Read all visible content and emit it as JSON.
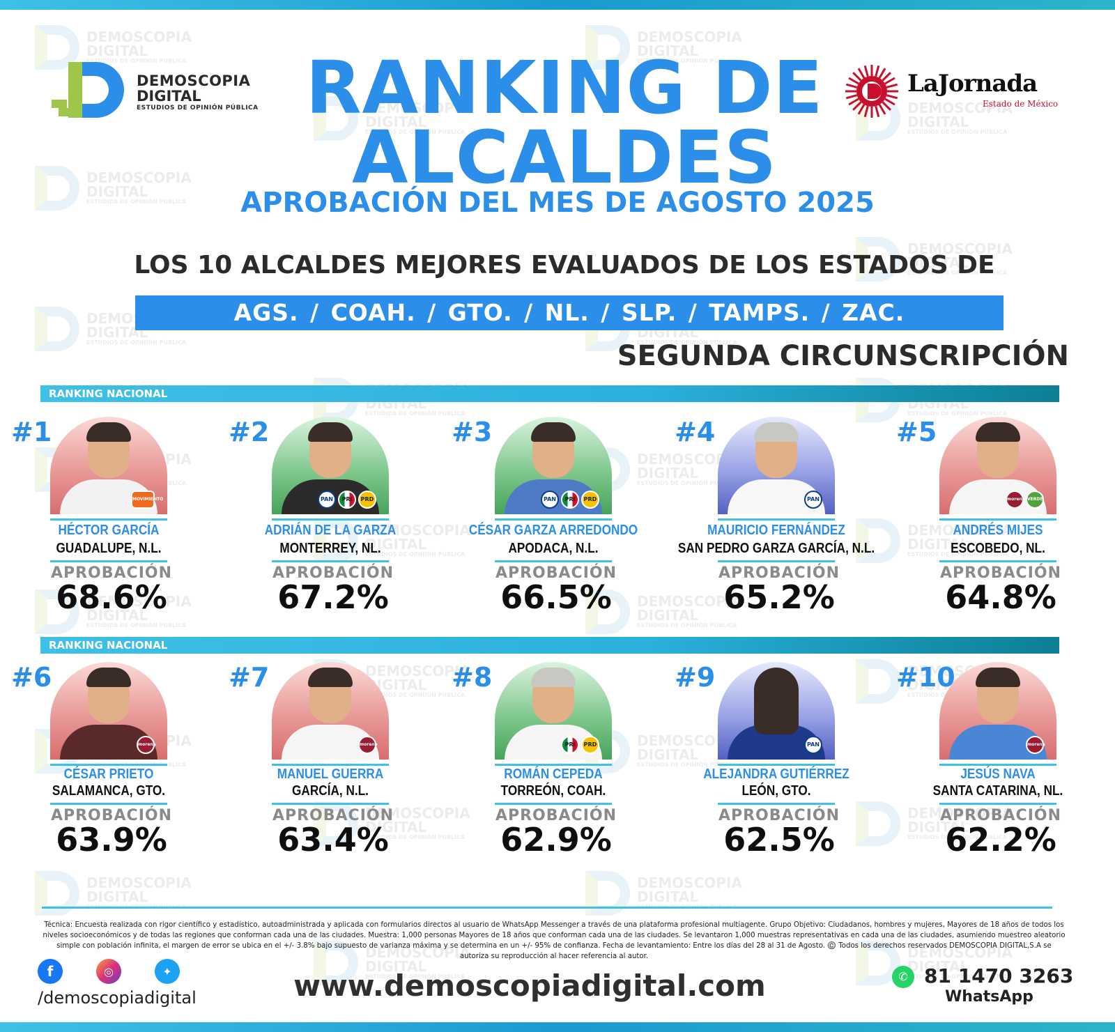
{
  "header": {
    "title_line1": "RANKING DE",
    "title_line2": "ALCALDES",
    "subtitle": "APROBACIÓN DEL MES DE AGOSTO 2025",
    "states_intro": "LOS 10 ALCALDES MEJORES EVALUADOS DE LOS ESTADOS DE",
    "states": "AGS. /  COAH.  /  GTO.  /  NL.  /  SLP.  /  TAMPS.  /  ZAC.",
    "circunscripcion": "SEGUNDA CIRCUNSCRIPCIÓN"
  },
  "brand_left": {
    "line1": "DEMOSCOPIA",
    "line2": "DIGITAL",
    "line3": "ESTUDIOS DE OPINIÓN PÚBLICA",
    "colors": {
      "green": "#9ec64a",
      "blue": "#2b8ee8"
    }
  },
  "brand_right": {
    "name": "LaJornada",
    "sub": "Estado de México",
    "color": "#c8102e"
  },
  "watermark": {
    "line1": "DEMOSCOPIA",
    "line2": "DIGITAL",
    "line3": "ESTUDIOS DE OPINIÓN PÚBLICA"
  },
  "ranking_bars": [
    "RANKING NACIONAL",
    "RANKING NACIONAL"
  ],
  "approval_label": "APROBACIÓN",
  "colors": {
    "accent": "#2b8ee8",
    "cyan": "#3fc0e6",
    "dark": "#0e0e0e"
  },
  "mayors": [
    {
      "rank": "#1",
      "name": "HÉCTOR GARCÍA",
      "city": "GUADALUPE, N.L.",
      "approval": "68.6%",
      "bg": "red",
      "parties": [
        "mc"
      ]
    },
    {
      "rank": "#2",
      "name": "ADRIÁN DE LA GARZA",
      "city": "MONTERREY, NL.",
      "approval": "67.2%",
      "bg": "green",
      "parties": [
        "pan",
        "pri",
        "prd"
      ]
    },
    {
      "rank": "#3",
      "name": "CÉSAR GARZA ARREDONDO",
      "city": "APODACA, N.L.",
      "approval": "66.5%",
      "bg": "green",
      "parties": [
        "pan",
        "pri",
        "prd"
      ]
    },
    {
      "rank": "#4",
      "name": "MAURICIO FERNÁNDEZ",
      "city": "SAN PEDRO GARZA GARCÍA, N.L.",
      "approval": "65.2%",
      "bg": "blue",
      "parties": [
        "pan"
      ]
    },
    {
      "rank": "#5",
      "name": "ANDRÉS MIJES",
      "city": "ESCOBEDO, NL.",
      "approval": "64.8%",
      "bg": "red",
      "parties": [
        "morena",
        "verde"
      ]
    },
    {
      "rank": "#6",
      "name": "CÉSAR PRIETO",
      "city": "SALAMANCA, GTO.",
      "approval": "63.9%",
      "bg": "red",
      "parties": [
        "morena"
      ]
    },
    {
      "rank": "#7",
      "name": "MANUEL GUERRA",
      "city": "GARCÍA, N.L.",
      "approval": "63.4%",
      "bg": "red",
      "parties": [
        "morena"
      ]
    },
    {
      "rank": "#8",
      "name": "ROMÁN CEPEDA",
      "city": "TORREÓN, COAH.",
      "approval": "62.9%",
      "bg": "green",
      "parties": [
        "pri",
        "prd"
      ]
    },
    {
      "rank": "#9",
      "name": "ALEJANDRA GUTIÉRREZ",
      "city": "LEÓN, GTO.",
      "approval": "62.5%",
      "bg": "blue",
      "parties": [
        "pan"
      ]
    },
    {
      "rank": "#10",
      "name": "JESÚS NAVA",
      "city": "SANTA CATARINA, NL.",
      "approval": "62.2%",
      "bg": "red",
      "parties": [
        "morena"
      ]
    }
  ],
  "party_labels": {
    "pan": "PAN",
    "pri": "PRI",
    "prd": "PRD",
    "morena": "morena",
    "verde": "VERDE",
    "mc": "MOVIMIENTO"
  },
  "footer": {
    "tecnica": "Técnica: Encuesta realizada con rigor científico y estadístico, autoadministrada y aplicada con formularios directos al usuario de WhatsApp Messenger a través de una plataforma profesional multiagente. Grupo Objetivo: Ciudadanos, hombres y mujeres, Mayores de 18 años de todos los niveles socioeconómicos y de todas las regiones que conforman cada una de las ciudades. Muestra: 1,000 personas Mayores de 18 años que conforman cada una de las ciudades. Se levantaron 1,000 muestras representativas en cada una de las ciudades, asumiendo muestreo aleatorio simple con población infinita, el margen de error se ubica en el +/- 3.8% bajo supuesto de varianza máxima y se determina en un +/- 95% de confianza. Fecha de levantamiento: Entre los días del 28 al 31 de Agosto. ©️ Todos los derechos reservados DEMOSCOPIA DIGITAL,S.A se autoriza su reproducción al hacer referencia al autor.",
    "handle": "/demoscopiadigital",
    "website": "www.demoscopiadigital.com",
    "phone": "81 1470 3263",
    "whatsapp_label": "WhatsApp",
    "icons": [
      "facebook-icon",
      "instagram-icon",
      "twitter-icon",
      "whatsapp-icon"
    ]
  }
}
